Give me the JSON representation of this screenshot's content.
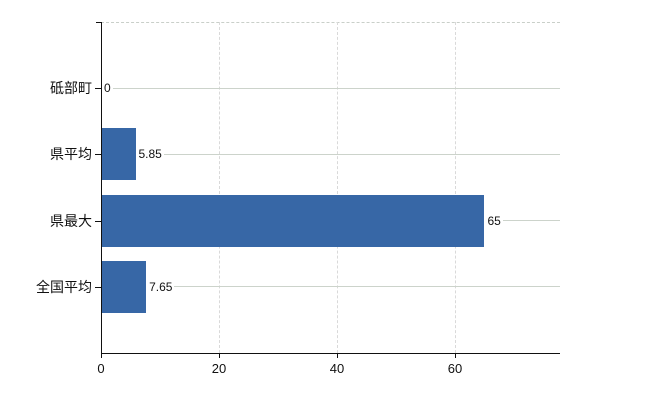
{
  "chart_data": {
    "type": "bar",
    "orientation": "horizontal",
    "title": "",
    "xlabel": "",
    "ylabel": "",
    "categories": [
      "砥部町",
      "県平均",
      "県最大",
      "全国平均"
    ],
    "values": [
      0,
      5.85,
      65,
      7.65
    ],
    "value_labels": [
      "0",
      "5.85",
      "65",
      "7.65"
    ],
    "x_ticks": [
      0,
      20,
      40,
      60
    ],
    "x_tick_labels": [
      "0",
      "20",
      "40",
      "60"
    ],
    "xlim": [
      0,
      77.8
    ],
    "grid": true,
    "legend": "none",
    "colors": {
      "bar": "#3767a6",
      "axis": "#111111",
      "leader_line": "#ccd3cb",
      "vertical_grid": "#d9d9d9",
      "top_border": "#c9cfc9",
      "text": "#111111",
      "background": "#ffffff"
    }
  }
}
